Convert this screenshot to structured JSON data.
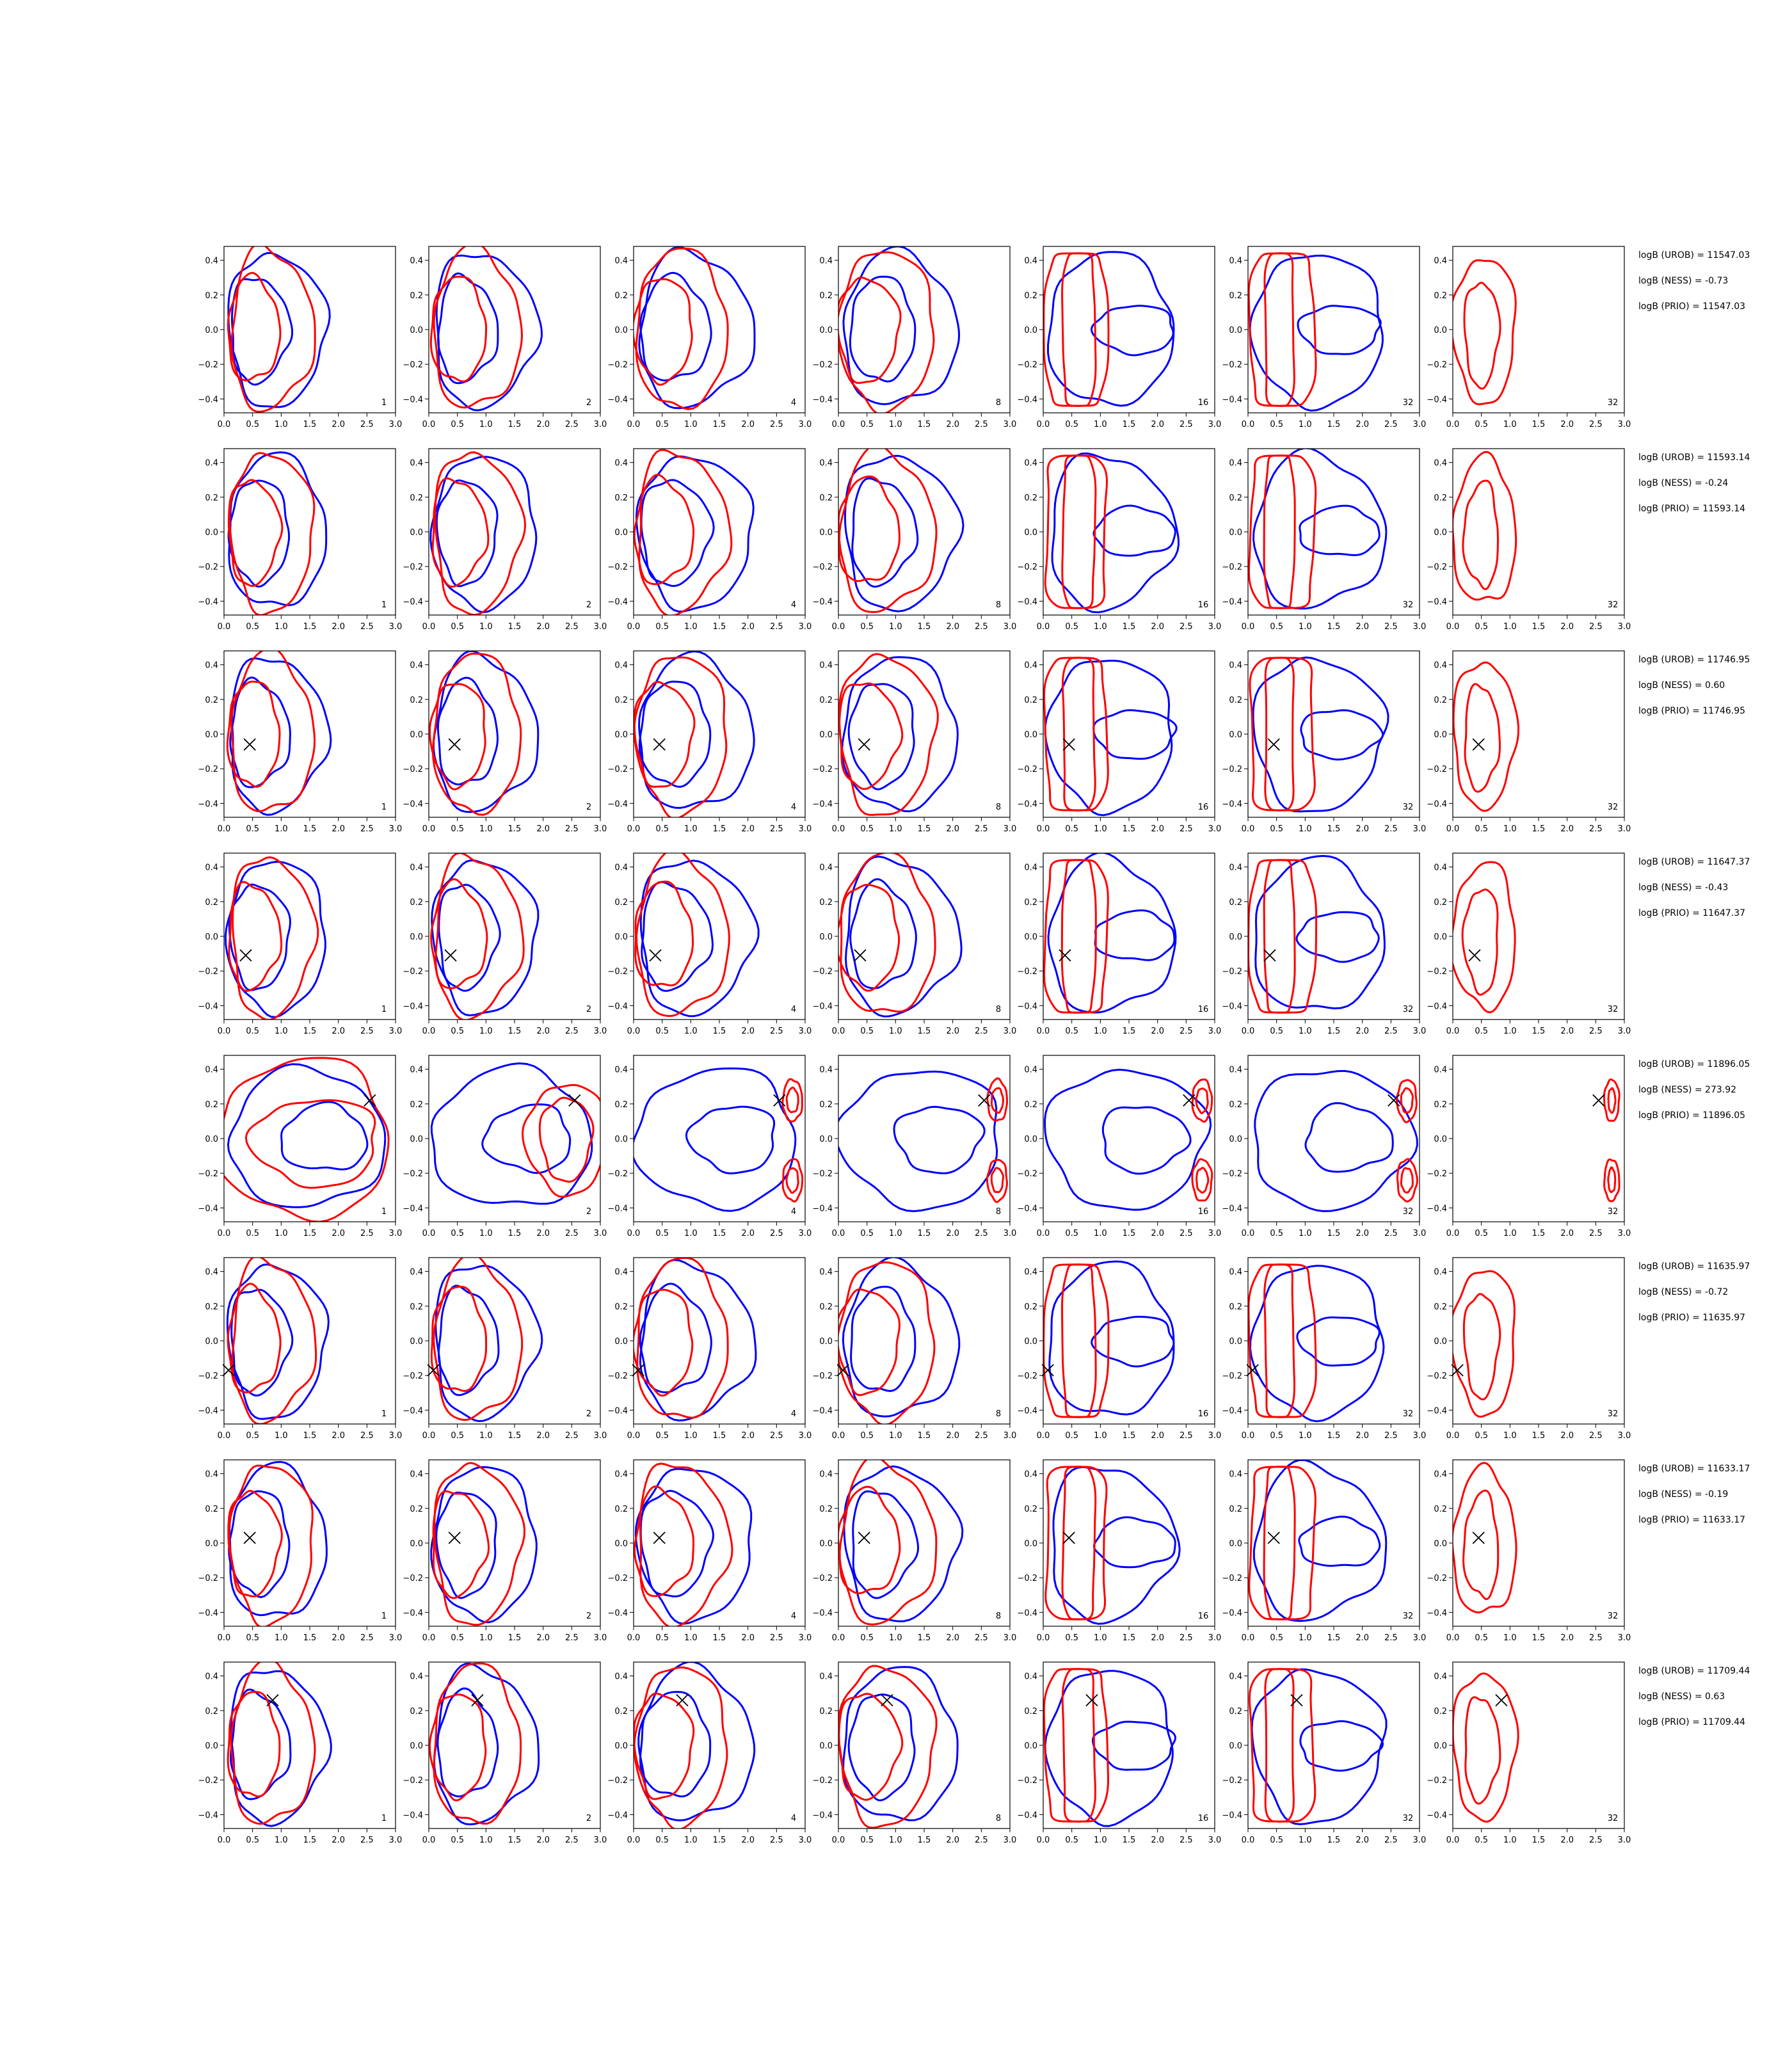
{
  "chart_data": {
    "type": "contour_grid",
    "columns": [
      {
        "corner_label": "1"
      },
      {
        "corner_label": "2"
      },
      {
        "corner_label": "4"
      },
      {
        "corner_label": "8"
      },
      {
        "corner_label": "16"
      },
      {
        "corner_label": "32"
      },
      {
        "corner_label": "32"
      }
    ],
    "xlim": [
      0.0,
      3.0
    ],
    "ylim": [
      -0.48,
      0.48
    ],
    "x_ticks": [
      "0.0",
      "0.5",
      "1.0",
      "1.5",
      "2.0",
      "2.5",
      "3.0"
    ],
    "x_tick_values": [
      0,
      0.5,
      1.0,
      1.5,
      2.0,
      2.5,
      3.0
    ],
    "y_ticks": [
      "0.4",
      "0.2",
      "0.0",
      "−0.2",
      "−0.4"
    ],
    "y_tick_values": [
      0.4,
      0.2,
      0.0,
      -0.2,
      -0.4
    ],
    "colors": {
      "blue": "#0000ff",
      "red": "#ff0000",
      "marker": "#000000"
    },
    "rows": [
      {
        "marker": null,
        "annotations": [
          "logB (UROB) = 11547.03",
          "logB (NESS) = -0.73",
          "logB (PRIO) = 11547.03"
        ]
      },
      {
        "marker": null,
        "annotations": [
          "logB (UROB) = 11593.14",
          "logB (NESS) = -0.24",
          "logB (PRIO) = 11593.14"
        ]
      },
      {
        "marker": {
          "x": 0.45,
          "y": -0.06
        },
        "annotations": [
          "logB (UROB) = 11746.95",
          "logB (NESS) = 0.60",
          "logB (PRIO) = 11746.95"
        ]
      },
      {
        "marker": {
          "x": 0.38,
          "y": -0.11
        },
        "annotations": [
          "logB (UROB) = 11647.37",
          "logB (NESS) = -0.43",
          "logB (PRIO) = 11647.37"
        ]
      },
      {
        "marker": {
          "x": 2.55,
          "y": 0.22
        },
        "annotations": [
          "logB (UROB) = 11896.05",
          "logB (NESS) = 273.92",
          "logB (PRIO) = 11896.05"
        ]
      },
      {
        "marker": {
          "x": 0.08,
          "y": -0.17
        },
        "annotations": [
          "logB (UROB) = 11635.97",
          "logB (NESS) = -0.72",
          "logB (PRIO) = 11635.97"
        ]
      },
      {
        "marker": {
          "x": 0.45,
          "y": 0.03
        },
        "annotations": [
          "logB (UROB) = 11633.17",
          "logB (NESS) = -0.19",
          "logB (PRIO) = 11633.17"
        ]
      },
      {
        "marker": {
          "x": 0.85,
          "y": 0.26
        },
        "annotations": [
          "logB (UROB) = 11709.44",
          "logB (NESS) = 0.63",
          "logB (PRIO) = 11709.44"
        ]
      }
    ]
  }
}
